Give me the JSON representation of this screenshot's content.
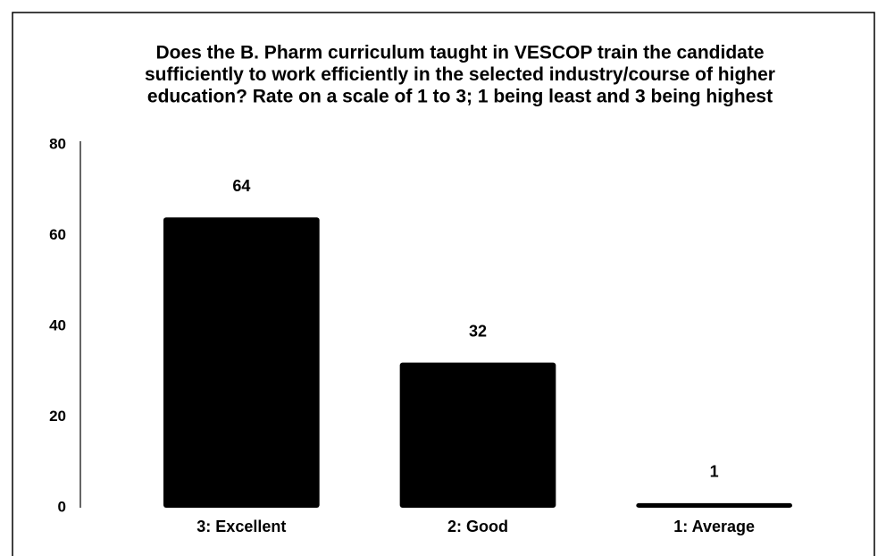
{
  "chart_data": {
    "type": "bar",
    "title": [
      "Does the B. Pharm curriculum taught in VESCOP train the candidate",
      "sufficiently to work efficiently in the selected industry/course of higher",
      "education? Rate on a scale of 1 to 3; 1 being least and 3 being highest"
    ],
    "categories": [
      "3: Excellent",
      "2: Good",
      "1: Average"
    ],
    "values": [
      64,
      32,
      1
    ],
    "color": "#000000",
    "ylim": [
      0,
      80
    ],
    "yticks": [
      0,
      20,
      40,
      60,
      80
    ],
    "grid": false,
    "data_labels": true
  }
}
